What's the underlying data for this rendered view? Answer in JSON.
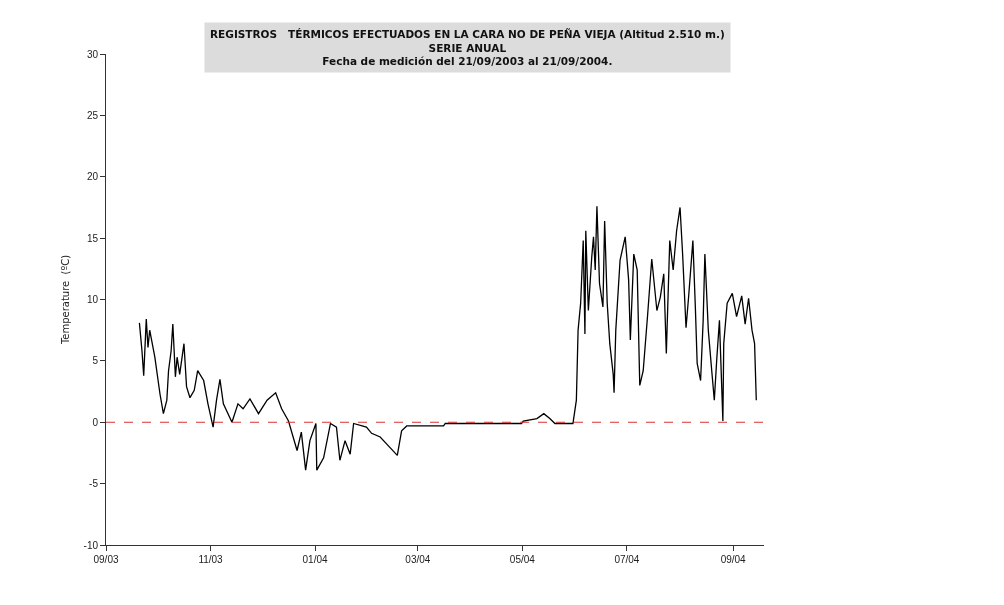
{
  "chart_data": {
    "type": "line",
    "title": "REGISTROS   TÉRMICOS EFECTUADOS EN LA CARA NO DE PEÑA VIEJA (Altitud 2.510 m.)\nSERIE ANUAL\nFecha de medición del 21/09/2003 al 21/09/2004.",
    "ylabel": "Temperature  (ºC)",
    "x": [
      "2003-09-20T12:00",
      "2003-09-22T00:00",
      "2003-09-23T00:00",
      "2003-09-24T12:00",
      "2003-09-25T12:00",
      "2003-09-26T12:00",
      "2003-09-29T12:00",
      "2003-10-02T12:00",
      "2003-10-04T12:00",
      "2003-10-06T12:00",
      "2003-10-07T12:00",
      "2003-10-09T00:00",
      "2003-10-10T00:00",
      "2003-10-11T12:00",
      "2003-10-12T12:00",
      "2003-10-14T00:00",
      "2003-10-16T12:00",
      "2003-10-18T00:00",
      "2003-10-20T00:00",
      "2003-10-22T12:00",
      "2003-10-24T12:00",
      "2003-10-28T00:00",
      "2003-10-30T12:00",
      "2003-11-02T12:00",
      "2003-11-04T12:00",
      "2003-11-06T12:00",
      "2003-11-08T12:00",
      "2003-11-13T12:00",
      "2003-11-17T00:00",
      "2003-11-20T00:00",
      "2003-11-24T00:00",
      "2003-11-29T00:00",
      "2003-12-04T00:00",
      "2003-12-09T00:00",
      "2003-12-12T12:00",
      "2003-12-16T12:00",
      "2003-12-21T12:00",
      "2003-12-24T00:00",
      "2003-12-26T12:00",
      "2003-12-29T00:00",
      "2004-01-01T12:00",
      "2004-01-02T00:00",
      "2004-01-06T00:00",
      "2004-01-10T00:00",
      "2004-01-13T12:00",
      "2004-01-15T12:00",
      "2004-01-18T12:00",
      "2004-01-21T12:00",
      "2004-01-23T12:00",
      "2004-01-31T00:00",
      "2004-02-03T00:00",
      "2004-02-08T00:00",
      "2004-02-12T00:00",
      "2004-02-18T00:00",
      "2004-02-20T12:00",
      "2004-02-23T12:00",
      "2004-03-16T00:00",
      "2004-03-17T00:00",
      "2004-04-30T12:00",
      "2004-05-01T12:00",
      "2004-05-09T12:00",
      "2004-05-13T12:00",
      "2004-05-17T00:00",
      "2004-05-20T00:00",
      "2004-05-30T12:00",
      "2004-06-01T12:00",
      "2004-06-02T12:00",
      "2004-06-04T00:00",
      "2004-06-05T12:00",
      "2004-06-06T12:00",
      "2004-06-07T00:00",
      "2004-06-08T12:00",
      "2004-06-10T12:00",
      "2004-06-11T12:00",
      "2004-06-12T12:00",
      "2004-06-13T12:00",
      "2004-06-15T00:00",
      "2004-06-17T00:00",
      "2004-06-18T00:00",
      "2004-06-19T12:00",
      "2004-06-21T00:00",
      "2004-06-23T00:00",
      "2004-06-23T12:00",
      "2004-06-24T12:00",
      "2004-06-27T00:00",
      "2004-06-30T00:00",
      "2004-07-02T00:00",
      "2004-07-03T00:00",
      "2004-07-05T00:00",
      "2004-07-07T00:00",
      "2004-07-08T12:00",
      "2004-07-10T12:00",
      "2004-07-13T00:00",
      "2004-07-15T12:00",
      "2004-07-18T12:00",
      "2004-07-20T12:00",
      "2004-07-22T12:00",
      "2004-07-24T00:00",
      "2004-07-26T00:00",
      "2004-07-28T00:00",
      "2004-07-30T00:00",
      "2004-08-01T00:00",
      "2004-08-02T12:00",
      "2004-08-04T12:00",
      "2004-08-06T00:00",
      "2004-08-08T12:00",
      "2004-08-10T00:00",
      "2004-08-11T00:00",
      "2004-08-13T00:00",
      "2004-08-14T12:00",
      "2004-08-15T12:00",
      "2004-08-17T12:00",
      "2004-08-19T12:00",
      "2004-08-21T00:00",
      "2004-08-22T12:00",
      "2004-08-24T00:00",
      "2004-08-26T00:00",
      "2004-08-26T12:00",
      "2004-08-28T12:00",
      "2004-08-31T12:00",
      "2004-09-03T00:00",
      "2004-09-06T00:00",
      "2004-09-08T00:00",
      "2004-09-10T00:00",
      "2004-09-12T00:00",
      "2004-09-13T12:00",
      "2004-09-14T12:00"
    ],
    "series": [
      {
        "color": "#000000",
        "values": [
          8.1,
          5.8,
          3.8,
          8.4,
          6.1,
          7.5,
          5.3,
          2.3,
          0.7,
          1.8,
          4.2,
          5.8,
          8.0,
          3.7,
          5.3,
          3.9,
          6.4,
          2.9,
          2.0,
          2.6,
          4.2,
          3.4,
          1.5,
          -0.4,
          1.8,
          3.5,
          1.5,
          0,
          1.5,
          1.1,
          1.9,
          0.7,
          1.8,
          2.4,
          1.1,
          0.1,
          -2.3,
          -0.8,
          -3.9,
          -1.5,
          -0.1,
          -3.9,
          -2.9,
          -0.1,
          -0.4,
          -3.1,
          -1.5,
          -2.6,
          -0.1,
          -0.4,
          -0.9,
          -1.2,
          -1.8,
          -2.7,
          -0.7,
          -0.3,
          -0.3,
          -0.1,
          -0.1,
          0.1,
          0.3,
          0.7,
          0.3,
          -0.1,
          -0.1,
          1.8,
          7.5,
          9.7,
          14.8,
          7.2,
          15.6,
          9.1,
          13.5,
          15.1,
          12.4,
          17.6,
          11.3,
          9.4,
          16.4,
          9.7,
          6.4,
          3.9,
          2.4,
          7.5,
          13.2,
          15.1,
          11.6,
          6.7,
          13.7,
          12.4,
          3.0,
          4.2,
          8.6,
          13.3,
          9.1,
          10.2,
          12.1,
          5.6,
          14.8,
          12.4,
          15.6,
          17.5,
          13.7,
          7.7,
          10.2,
          14.8,
          9.1,
          4.8,
          3.4,
          8.3,
          13.7,
          7.5,
          4.2,
          1.8,
          5.3,
          8.3,
          0.1,
          6.4,
          9.7,
          10.5,
          8.6,
          10.3,
          8.0,
          10.1,
          7.5,
          6.4,
          1.8
        ]
      }
    ],
    "xlim": [
      "2003-09-01",
      "2004-09-19"
    ],
    "xticks": [
      {
        "value": "2003-09-01",
        "label": "09/03"
      },
      {
        "value": "2003-11-01",
        "label": "11/03"
      },
      {
        "value": "2004-01-01",
        "label": "01/04"
      },
      {
        "value": "2004-03-01",
        "label": "03/04"
      },
      {
        "value": "2004-05-01",
        "label": "05/04"
      },
      {
        "value": "2004-07-01",
        "label": "07/04"
      },
      {
        "value": "2004-09-01",
        "label": "09/04"
      }
    ],
    "ylim": [
      -10,
      30
    ],
    "yticks": [
      -10,
      -5,
      0,
      5,
      10,
      15,
      20,
      25,
      30
    ],
    "ref_lines": [
      {
        "axis": "y",
        "value": 0,
        "color": "#e03030",
        "line_style": "dashed"
      }
    ],
    "grid": false,
    "marker": "none",
    "line_style": "solid"
  }
}
